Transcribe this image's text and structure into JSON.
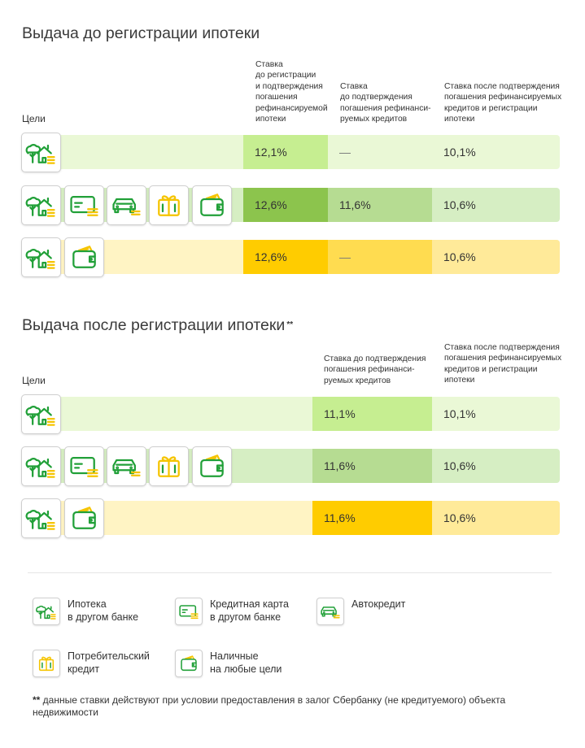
{
  "section1": {
    "title": "Выдача до регистрации ипотеки",
    "goals_label": "Цели",
    "headers": [
      "Ставка\nдо регистрации\nи подтверждения\nпогашения\nрефинансируемой\nипотеки",
      "Ставка\nдо подтверждения\nпогашения рефинанси-\nруемых кредитов",
      "Ставка после подтверждения\nпогашения рефинансируемых\nкредитов и регистрации\nипотеки"
    ],
    "rows": [
      {
        "icons": [
          "house-tree-icon"
        ],
        "rates": [
          "12,1%",
          "—",
          "10,1%"
        ]
      },
      {
        "icons": [
          "house-tree-icon",
          "credit-card-icon",
          "car-icon",
          "gift-icon",
          "wallet-icon"
        ],
        "rates": [
          "12,6%",
          "11,6%",
          "10,6%"
        ]
      },
      {
        "icons": [
          "house-tree-icon",
          "wallet-icon"
        ],
        "rates": [
          "12,6%",
          "—",
          "10,6%"
        ]
      }
    ]
  },
  "section2": {
    "title": "Выдача после регистрации ипотеки",
    "title_mark": "**",
    "goals_label": "Цели",
    "headers": [
      "Ставка до подтверждения\nпогашения рефинанси-\nруемых кредитов",
      "Ставка после подтверждения\nпогашения рефинансируемых\nкредитов и регистрации\nипотеки"
    ],
    "rows": [
      {
        "icons": [
          "house-tree-icon"
        ],
        "rates": [
          "11,1%",
          "10,1%"
        ]
      },
      {
        "icons": [
          "house-tree-icon",
          "credit-card-icon",
          "car-icon",
          "gift-icon",
          "wallet-icon"
        ],
        "rates": [
          "11,6%",
          "10,6%"
        ]
      },
      {
        "icons": [
          "house-tree-icon",
          "wallet-icon"
        ],
        "rates": [
          "11,6%",
          "10,6%"
        ]
      }
    ]
  },
  "legend": [
    {
      "icon": "house-tree-icon",
      "label": "Ипотека\nв другом банке"
    },
    {
      "icon": "credit-card-icon",
      "label": "Кредитная карта\nв другом банке"
    },
    {
      "icon": "car-icon",
      "label": "Автокредит"
    },
    {
      "icon": "gift-icon",
      "label": "Потребительский\nкредит"
    },
    {
      "icon": "wallet-icon",
      "label": "Наличные\nна любые цели"
    }
  ],
  "footnote": {
    "mark": "**",
    "text": " данные ставки действуют при условии предоставления в залог Сбербанку (не кредитуемого) объекта недвижимости"
  },
  "colors": {
    "green_light": "#eaf8d6",
    "green_mid": "#c6ee91",
    "green_row_light": "#d6eec3",
    "green_row_dark": "#8cc44d",
    "green_row_mid": "#b6dc92",
    "yellow_light": "#fff4c4",
    "yellow_strong": "#ffcc00",
    "yellow_mid": "#ffdc50",
    "yellow_soft": "#ffea99",
    "icon_green": "#21a038",
    "icon_yellow": "#f5c400"
  }
}
